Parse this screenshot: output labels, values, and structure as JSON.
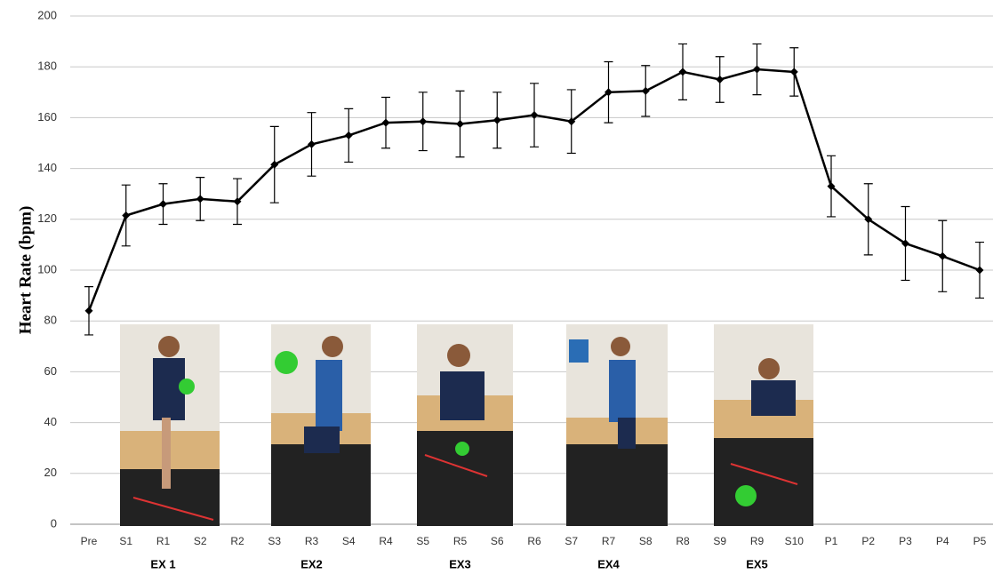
{
  "chart_data": {
    "type": "line",
    "y_label": "Heart Rate (bpm)",
    "categories": [
      "Pre",
      "S1",
      "R1",
      "S2",
      "R2",
      "S3",
      "R3",
      "S4",
      "R4",
      "S5",
      "R5",
      "S6",
      "R6",
      "S7",
      "R7",
      "S8",
      "R8",
      "S9",
      "R9",
      "S10",
      "P1",
      "P2",
      "P3",
      "P4",
      "P5"
    ],
    "series": [
      {
        "color": "#000000",
        "values": [
          84,
          121.5,
          126,
          128,
          127,
          141.5,
          149.5,
          153,
          158,
          158.5,
          157.5,
          159,
          161,
          158.5,
          170,
          170.5,
          178,
          175,
          179,
          178,
          133,
          120,
          110.5,
          105.5,
          100
        ],
        "errors": [
          9.5,
          12,
          8,
          8.5,
          9,
          15,
          12.5,
          10.5,
          10,
          11.5,
          13,
          11,
          12.5,
          12.5,
          12,
          10,
          11,
          9,
          10,
          9.5,
          12,
          14,
          14.5,
          14,
          11
        ]
      }
    ],
    "groups": [
      {
        "label": "EX 1",
        "categories": [
          "S1",
          "R1",
          "S2"
        ]
      },
      {
        "label": "EX2",
        "categories": [
          "S3",
          "R3",
          "S4"
        ]
      },
      {
        "label": "EX3",
        "categories": [
          "S5",
          "R5",
          "S6"
        ]
      },
      {
        "label": "EX4",
        "categories": [
          "S7",
          "R7",
          "S8"
        ]
      },
      {
        "label": "EX5",
        "categories": [
          "S9",
          "R9",
          "S10"
        ]
      }
    ],
    "ylim": [
      0,
      200
    ],
    "yticks": [
      0,
      20,
      40,
      60,
      80,
      100,
      120,
      140,
      160,
      180,
      200
    ],
    "grid": true
  }
}
